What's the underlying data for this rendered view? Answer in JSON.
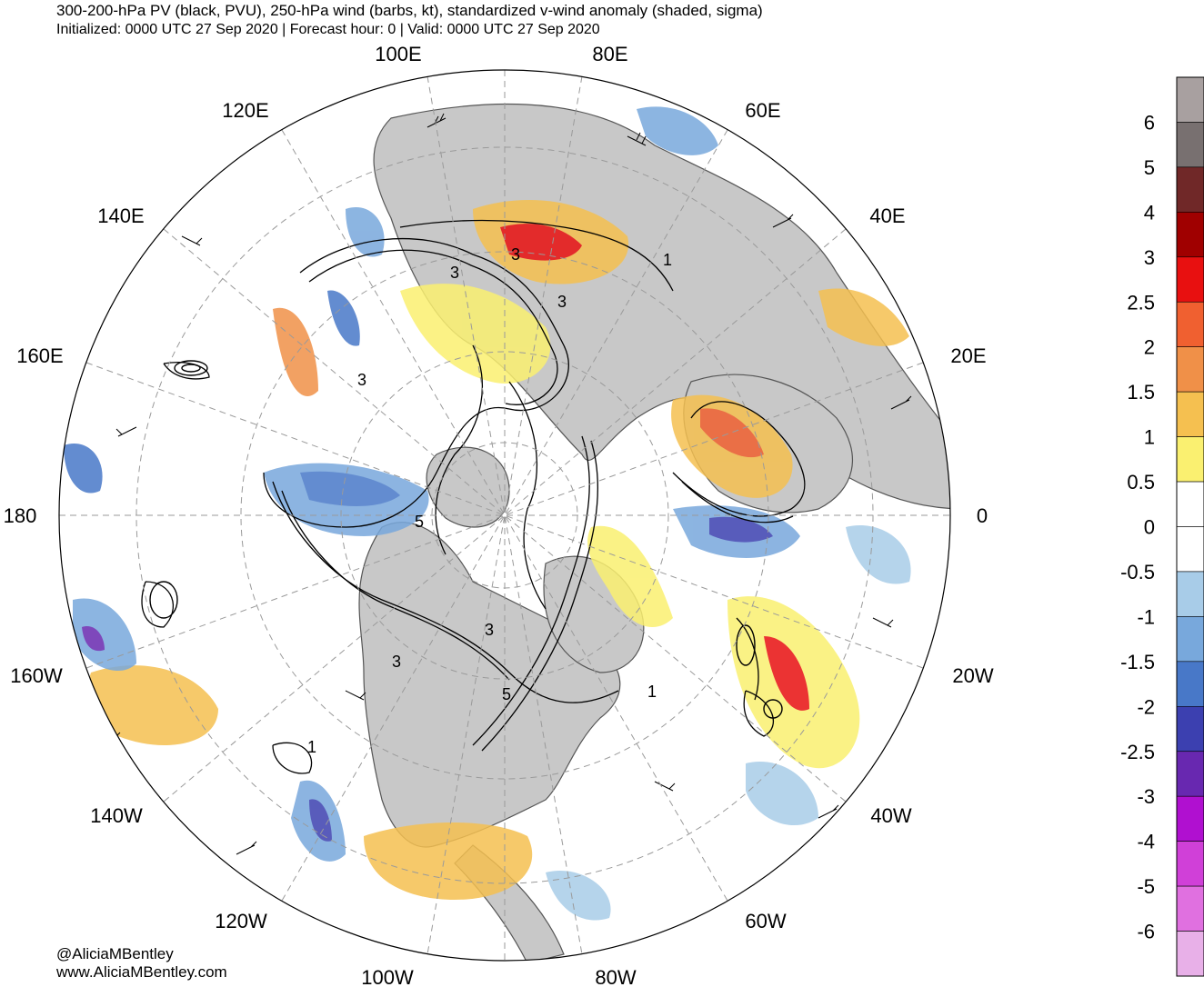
{
  "header": {
    "title": "300-200-hPa PV (black, PVU), 250-hPa wind (barbs, kt), standardized v-wind anomaly (shaded, sigma)",
    "subtitle": "Initialized: 0000 UTC 27 Sep 2020 | Forecast hour: 0 | Valid: 0000 UTC 27 Sep 2020"
  },
  "credits": {
    "handle": "@AliciaMBentley",
    "website": "www.AliciaMBentley.com"
  },
  "map": {
    "projection": "north-polar-stereographic",
    "longitude_labels": [
      "100E",
      "80E",
      "120E",
      "60E",
      "140E",
      "40E",
      "160E",
      "20E",
      "180",
      "0",
      "160W",
      "20W",
      "140W",
      "40W",
      "120W",
      "60W",
      "100W",
      "80W"
    ],
    "pv_contour_labels": [
      "3",
      "3",
      "1",
      "3",
      "3",
      "5",
      "3",
      "3",
      "5",
      "1",
      "1"
    ],
    "colors": {
      "land": "#c8c8c8",
      "ocean": "#ffffff",
      "contour": "#000000",
      "grid": "#9a9a9a"
    }
  },
  "colorbar": {
    "ticks": [
      "6",
      "5",
      "4",
      "3",
      "2.5",
      "2",
      "1.5",
      "1",
      "0.5",
      "0",
      "-0.5",
      "-1",
      "-1.5",
      "-2",
      "-2.5",
      "-3",
      "-4",
      "-5",
      "-6"
    ],
    "colors": [
      "#a8a0a0",
      "#787070",
      "#702828",
      "#a00000",
      "#e81010",
      "#f06030",
      "#f09048",
      "#f5c050",
      "#faf070",
      "#ffffff",
      "#ffffff",
      "#a8cce8",
      "#78a8dc",
      "#4878c8",
      "#3c40b0",
      "#6828b0",
      "#b010d0",
      "#d040d8",
      "#e070e0",
      "#e8b0e8"
    ]
  }
}
